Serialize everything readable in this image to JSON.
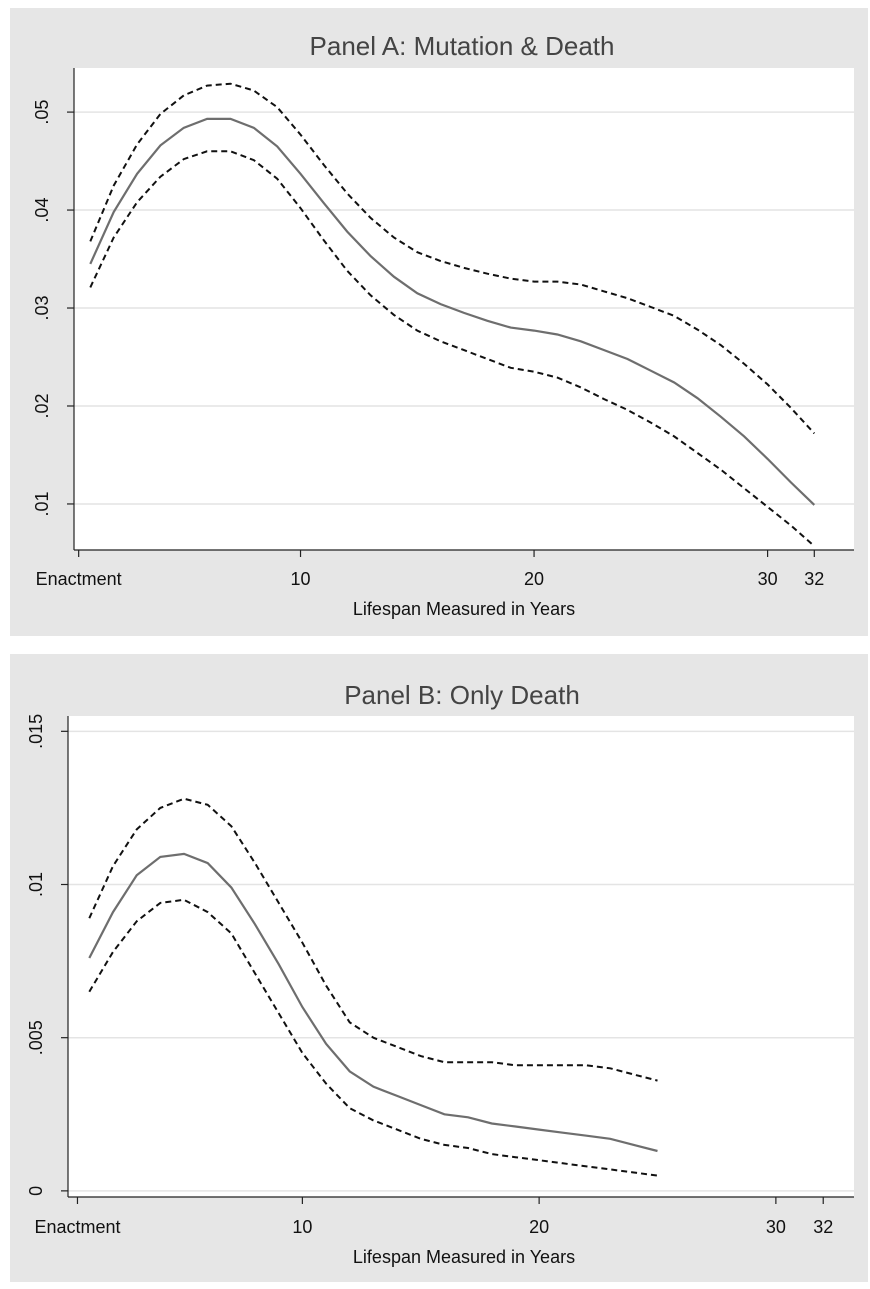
{
  "chart_data": [
    {
      "type": "line",
      "title": "Panel A: Mutation & Death",
      "xlabel": "Lifespan Measured in Years",
      "ylabel": "",
      "xlim": [
        0.3,
        33.7
      ],
      "ylim": [
        0.0053,
        0.0545
      ],
      "x_ticks": [
        {
          "value": 0.5,
          "label": "Enactment"
        },
        {
          "value": 10,
          "label": "10"
        },
        {
          "value": 20,
          "label": "20"
        },
        {
          "value": 30,
          "label": "30"
        },
        {
          "value": 32,
          "label": "32"
        }
      ],
      "y_ticks": [
        {
          "value": 0.01,
          "label": ".01"
        },
        {
          "value": 0.02,
          "label": ".02"
        },
        {
          "value": 0.03,
          "label": ".03"
        },
        {
          "value": 0.04,
          "label": ".04"
        },
        {
          "value": 0.05,
          "label": ".05"
        }
      ],
      "grid": true,
      "legend": "none",
      "series": [
        {
          "style": "dashed",
          "x": [
            1,
            2,
            3,
            4,
            5,
            6,
            7,
            8,
            9,
            10,
            11,
            12,
            13,
            14,
            15,
            16,
            17,
            18,
            19,
            20,
            21,
            22,
            23,
            24,
            25,
            26,
            27,
            28,
            29,
            30,
            31,
            32
          ],
          "values": [
            0.0368,
            0.0425,
            0.0467,
            0.0498,
            0.0517,
            0.0527,
            0.0529,
            0.0522,
            0.0505,
            0.0477,
            0.0446,
            0.0417,
            0.0392,
            0.0372,
            0.0357,
            0.0348,
            0.0341,
            0.0335,
            0.033,
            0.0327,
            0.0327,
            0.0324,
            0.0317,
            0.031,
            0.0301,
            0.0292,
            0.0278,
            0.0262,
            0.0243,
            0.0222,
            0.0198,
            0.0172
          ]
        },
        {
          "style": "solid",
          "x": [
            1,
            2,
            3,
            4,
            5,
            6,
            7,
            8,
            9,
            10,
            11,
            12,
            13,
            14,
            15,
            16,
            17,
            18,
            19,
            20,
            21,
            22,
            23,
            24,
            25,
            26,
            27,
            28,
            29,
            30,
            31,
            32
          ],
          "values": [
            0.0345,
            0.0398,
            0.0437,
            0.0466,
            0.0484,
            0.0493,
            0.0493,
            0.0484,
            0.0465,
            0.0437,
            0.0407,
            0.0378,
            0.0353,
            0.0332,
            0.0315,
            0.0304,
            0.0295,
            0.0287,
            0.028,
            0.0277,
            0.0273,
            0.0266,
            0.0257,
            0.0248,
            0.0236,
            0.0224,
            0.0208,
            0.0189,
            0.0169,
            0.0146,
            0.0122,
            0.0099
          ]
        },
        {
          "style": "dashed",
          "x": [
            1,
            2,
            3,
            4,
            5,
            6,
            7,
            8,
            9,
            10,
            11,
            12,
            13,
            14,
            15,
            16,
            17,
            18,
            19,
            20,
            21,
            22,
            23,
            24,
            25,
            26,
            27,
            28,
            29,
            30,
            31,
            32
          ],
          "values": [
            0.0321,
            0.0372,
            0.0408,
            0.0434,
            0.0452,
            0.046,
            0.046,
            0.0451,
            0.0432,
            0.0402,
            0.0369,
            0.0338,
            0.0313,
            0.0293,
            0.0277,
            0.0266,
            0.0257,
            0.0248,
            0.0239,
            0.0235,
            0.0229,
            0.0219,
            0.0207,
            0.0196,
            0.0183,
            0.0169,
            0.0152,
            0.0135,
            0.0116,
            0.0097,
            0.0078,
            0.0057
          ]
        }
      ]
    },
    {
      "type": "line",
      "title": "Panel B: Only Death",
      "xlabel": "Lifespan Measured in Years",
      "ylabel": "",
      "xlim": [
        0.1,
        33.3
      ],
      "ylim": [
        -0.0002,
        0.0155
      ],
      "x_ticks": [
        {
          "value": 0.5,
          "label": "Enactment"
        },
        {
          "value": 10,
          "label": "10"
        },
        {
          "value": 20,
          "label": "20"
        },
        {
          "value": 30,
          "label": "30"
        },
        {
          "value": 32,
          "label": "32"
        }
      ],
      "y_ticks": [
        {
          "value": 0,
          "label": "0"
        },
        {
          "value": 0.005,
          "label": ".005"
        },
        {
          "value": 0.01,
          "label": ".01"
        },
        {
          "value": 0.015,
          "label": ".015"
        }
      ],
      "grid": true,
      "legend": "none",
      "series": [
        {
          "style": "dashed",
          "x": [
            1,
            2,
            3,
            4,
            5,
            6,
            7,
            8,
            9,
            10,
            11,
            12,
            13,
            14,
            15,
            16,
            17,
            18,
            19,
            20,
            21,
            22,
            23,
            24,
            25
          ],
          "values": [
            0.0089,
            0.0106,
            0.0118,
            0.0125,
            0.0128,
            0.0126,
            0.0119,
            0.0107,
            0.0094,
            0.0081,
            0.0067,
            0.0055,
            0.005,
            0.0047,
            0.0044,
            0.0042,
            0.0042,
            0.0042,
            0.0041,
            0.0041,
            0.0041,
            0.0041,
            0.004,
            0.0038,
            0.0036
          ]
        },
        {
          "style": "solid",
          "x": [
            1,
            2,
            3,
            4,
            5,
            6,
            7,
            8,
            9,
            10,
            11,
            12,
            13,
            14,
            15,
            16,
            17,
            18,
            19,
            20,
            21,
            22,
            23,
            24,
            25
          ],
          "values": [
            0.0076,
            0.0091,
            0.0103,
            0.0109,
            0.011,
            0.0107,
            0.0099,
            0.0087,
            0.0074,
            0.006,
            0.0048,
            0.0039,
            0.0034,
            0.0031,
            0.0028,
            0.0025,
            0.0024,
            0.0022,
            0.0021,
            0.002,
            0.0019,
            0.0018,
            0.0017,
            0.0015,
            0.0013
          ]
        },
        {
          "style": "dashed",
          "x": [
            1,
            2,
            3,
            4,
            5,
            6,
            7,
            8,
            9,
            10,
            11,
            12,
            13,
            14,
            15,
            16,
            17,
            18,
            19,
            20,
            21,
            22,
            23,
            24,
            25
          ],
          "values": [
            0.0065,
            0.0078,
            0.0088,
            0.0094,
            0.0095,
            0.0091,
            0.0084,
            0.0071,
            0.0058,
            0.0045,
            0.0035,
            0.0027,
            0.0023,
            0.002,
            0.0017,
            0.0015,
            0.0014,
            0.0012,
            0.0011,
            0.001,
            0.0009,
            0.0008,
            0.0007,
            0.0006,
            0.0005
          ]
        }
      ]
    }
  ]
}
